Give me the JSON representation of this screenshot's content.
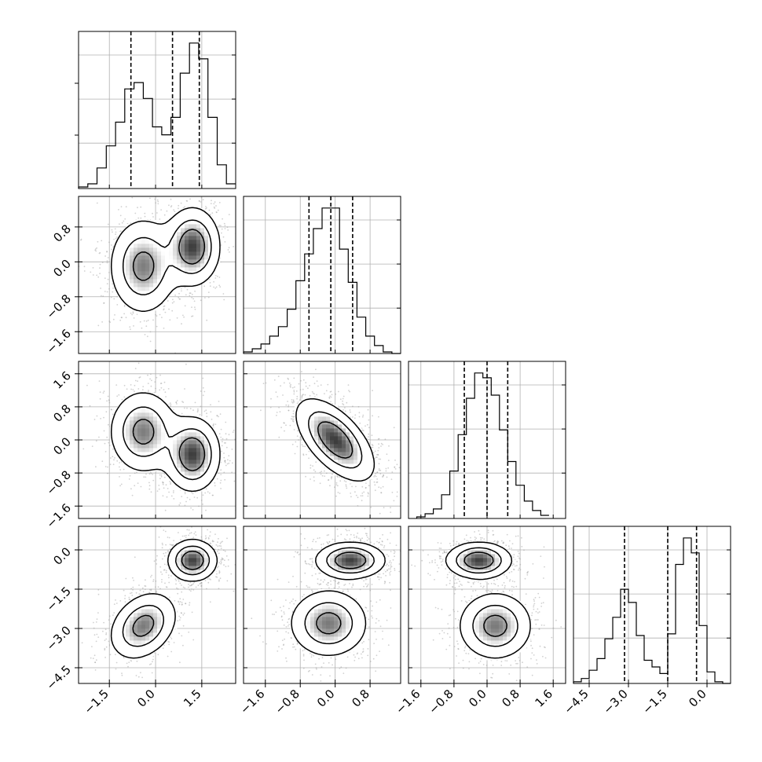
{
  "chart_data": {
    "type": "corner",
    "title": "",
    "n_params": 4,
    "grid": true,
    "params": [
      {
        "index": 0,
        "label": "",
        "range": [
          -2.5,
          2.6
        ],
        "ticks": [
          -1.5,
          0.0,
          1.5
        ],
        "tick_labels": [
          "−1.5",
          "0.0",
          "1.5"
        ],
        "quantiles": [
          -0.8,
          0.55,
          1.42
        ],
        "hist": {
          "bin_edges": [
            -2.5,
            -2.2,
            -1.9,
            -1.6,
            -1.3,
            -1.0,
            -0.7,
            -0.4,
            -0.1,
            0.2,
            0.5,
            0.8,
            1.1,
            1.4,
            1.7,
            2.0,
            2.3,
            2.6
          ],
          "counts": [
            0.01,
            0.03,
            0.13,
            0.27,
            0.42,
            0.63,
            0.67,
            0.57,
            0.39,
            0.34,
            0.45,
            0.73,
            0.92,
            0.82,
            0.45,
            0.15,
            0.03
          ]
        }
      },
      {
        "index": 1,
        "label": "",
        "range": [
          -2.1,
          1.5
        ],
        "ticks": [
          -1.6,
          -0.8,
          0.0,
          0.8
        ],
        "tick_labels": [
          "−1.6",
          "−0.8",
          "0.0",
          "0.8"
        ],
        "quantiles": [
          -0.6,
          -0.1,
          0.4
        ],
        "hist": {
          "bin_edges": [
            -2.1,
            -1.9,
            -1.7,
            -1.5,
            -1.3,
            -1.1,
            -0.9,
            -0.7,
            -0.5,
            -0.3,
            -0.1,
            0.1,
            0.3,
            0.5,
            0.7,
            0.9,
            1.1,
            1.3,
            1.5
          ],
          "counts": [
            0.01,
            0.03,
            0.06,
            0.11,
            0.17,
            0.28,
            0.46,
            0.63,
            0.79,
            0.92,
            0.92,
            0.66,
            0.45,
            0.23,
            0.11,
            0.05,
            0.01,
            0.0
          ]
        }
      },
      {
        "index": 2,
        "label": "",
        "range": [
          -1.9,
          1.9
        ],
        "ticks": [
          -1.6,
          -0.8,
          0.0,
          0.8,
          1.6
        ],
        "tick_labels": [
          "−1.6",
          "−0.8",
          "0.0",
          "0.8",
          "1.6"
        ],
        "quantiles": [
          -0.55,
          0.0,
          0.5
        ],
        "hist": {
          "bin_edges": [
            -1.7,
            -1.5,
            -1.3,
            -1.1,
            -0.9,
            -0.7,
            -0.5,
            -0.3,
            -0.1,
            0.1,
            0.3,
            0.5,
            0.7,
            0.9,
            1.1,
            1.3,
            1.5
          ],
          "counts": [
            0.01,
            0.03,
            0.06,
            0.15,
            0.3,
            0.53,
            0.76,
            0.92,
            0.89,
            0.78,
            0.56,
            0.36,
            0.21,
            0.11,
            0.05,
            0.02
          ]
        }
      },
      {
        "index": 3,
        "label": "",
        "range": [
          -5.1,
          0.9
        ],
        "ticks": [
          -4.5,
          -3.0,
          -1.5,
          0.0
        ],
        "tick_labels": [
          "−4.5",
          "−3.0",
          "−1.5",
          "0.0"
        ],
        "quantiles": [
          -3.15,
          -1.5,
          -0.4
        ],
        "hist": {
          "bin_edges": [
            -5.1,
            -4.8,
            -4.5,
            -4.2,
            -3.9,
            -3.6,
            -3.3,
            -3.0,
            -2.7,
            -2.4,
            -2.1,
            -1.8,
            -1.5,
            -1.2,
            -0.9,
            -0.6,
            -0.3,
            0.0,
            0.3,
            0.6,
            0.9
          ],
          "counts": [
            0.01,
            0.03,
            0.08,
            0.15,
            0.27,
            0.4,
            0.57,
            0.49,
            0.29,
            0.14,
            0.1,
            0.06,
            0.3,
            0.72,
            0.88,
            0.79,
            0.35,
            0.07,
            0.01,
            0.0
          ]
        }
      }
    ],
    "pairs": [
      {
        "x": 0,
        "y": 1,
        "modes": [
          {
            "cx": -0.4,
            "cy": -0.1,
            "sx": 0.55,
            "sy": 0.55,
            "rho": 0.0,
            "w": 0.45
          },
          {
            "cx": 1.2,
            "cy": 0.35,
            "sx": 0.45,
            "sy": 0.45,
            "rho": 0.0,
            "w": 0.55
          }
        ]
      },
      {
        "x": 0,
        "y": 2,
        "modes": [
          {
            "cx": -0.4,
            "cy": 0.2,
            "sx": 0.55,
            "sy": 0.5,
            "rho": 0.0,
            "w": 0.45
          },
          {
            "cx": 1.2,
            "cy": -0.35,
            "sx": 0.45,
            "sy": 0.45,
            "rho": 0.0,
            "w": 0.55
          }
        ]
      },
      {
        "x": 1,
        "y": 2,
        "modes": [
          {
            "cx": 0.0,
            "cy": 0.0,
            "sx": 0.45,
            "sy": 0.5,
            "rho": -0.6,
            "w": 1.0
          }
        ]
      },
      {
        "x": 0,
        "y": 3,
        "modes": [
          {
            "cx": -0.4,
            "cy": -2.9,
            "sx": 0.55,
            "sy": 0.65,
            "rho": 0.3,
            "w": 0.45
          },
          {
            "cx": 1.2,
            "cy": -0.4,
            "sx": 0.4,
            "sy": 0.4,
            "rho": 0.0,
            "w": 0.55
          }
        ]
      },
      {
        "x": 1,
        "y": 3,
        "modes": [
          {
            "cx": -0.15,
            "cy": -2.8,
            "sx": 0.45,
            "sy": 0.65,
            "rho": 0.0,
            "w": 0.45
          },
          {
            "cx": 0.35,
            "cy": -0.4,
            "sx": 0.4,
            "sy": 0.35,
            "rho": 0.0,
            "w": 0.55
          }
        ]
      },
      {
        "x": 2,
        "y": 3,
        "modes": [
          {
            "cx": 0.2,
            "cy": -2.9,
            "sx": 0.45,
            "sy": 0.65,
            "rho": 0.0,
            "w": 0.45
          },
          {
            "cx": -0.2,
            "cy": -0.4,
            "sx": 0.4,
            "sy": 0.35,
            "rho": 0.0,
            "w": 0.55
          }
        ]
      }
    ]
  }
}
